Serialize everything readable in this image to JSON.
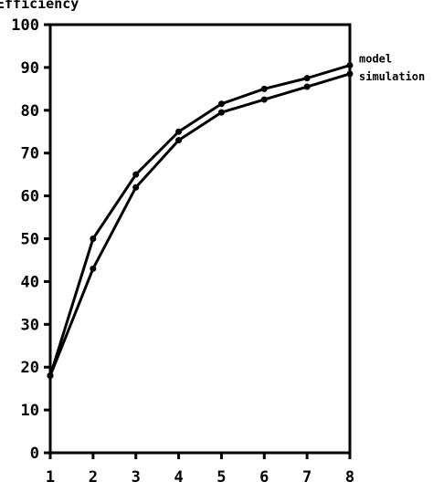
{
  "chart_data": {
    "type": "line",
    "ylabel": "Efficiency",
    "xlabel": "",
    "x": [
      1,
      2,
      3,
      4,
      5,
      6,
      7,
      8
    ],
    "xlim": [
      1,
      8
    ],
    "ylim": [
      0,
      100
    ],
    "x_ticks": [
      "1",
      "2",
      "3",
      "4",
      "5",
      "6",
      "7",
      "8"
    ],
    "y_ticks": [
      "0",
      "10",
      "20",
      "30",
      "40",
      "50",
      "60",
      "70",
      "80",
      "90",
      "100"
    ],
    "grid": false,
    "legend_position": "right, at line ends",
    "series": [
      {
        "name": "model",
        "values": [
          18,
          50,
          65,
          75,
          81.5,
          85,
          87.5,
          90.5
        ]
      },
      {
        "name": "simulation",
        "values": [
          18,
          43,
          62,
          73,
          79.5,
          82.5,
          85.5,
          88.5
        ]
      }
    ],
    "line_color": "#000000"
  }
}
